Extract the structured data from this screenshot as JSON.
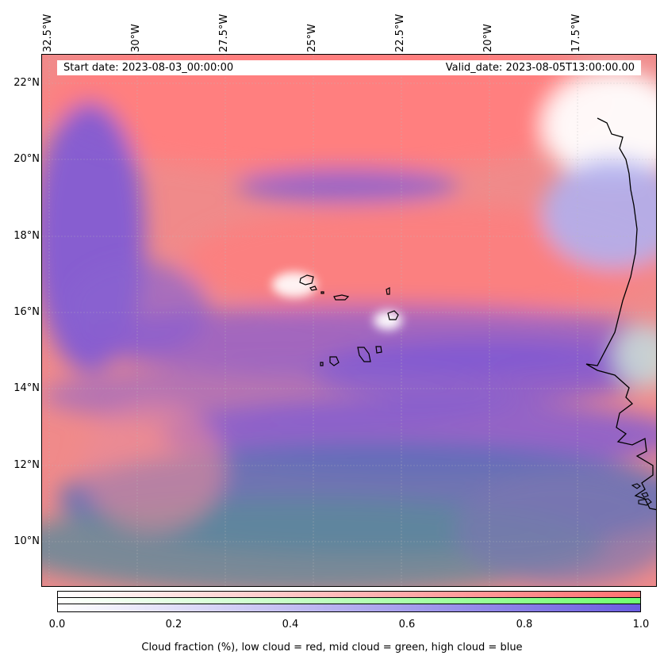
{
  "map": {
    "start_date": "Start date: 2023-08-03_00:00:00",
    "valid_date": "Valid_date: 2023-08-05T13:00:00.00",
    "lon_ticks": [
      "32.5°W",
      "30°W",
      "27.5°W",
      "25°W",
      "22.5°W",
      "20°W",
      "17.5°W"
    ],
    "lat_ticks": [
      "22°N",
      "20°N",
      "18°N",
      "16°N",
      "14°N",
      "12°N",
      "10°N"
    ],
    "lon_range": [
      -33.0,
      -15.0
    ],
    "lat_range": [
      8.8,
      22.8
    ]
  },
  "colorbar": {
    "ticks": [
      "0.0",
      "0.2",
      "0.4",
      "0.6",
      "0.8",
      "1.0"
    ],
    "caption": "Cloud fraction (%), low cloud = red, mid cloud = green, high cloud = blue",
    "colors": {
      "low": "#ff7070",
      "mid": "#70ff70",
      "high": "#6a5de0"
    }
  }
}
